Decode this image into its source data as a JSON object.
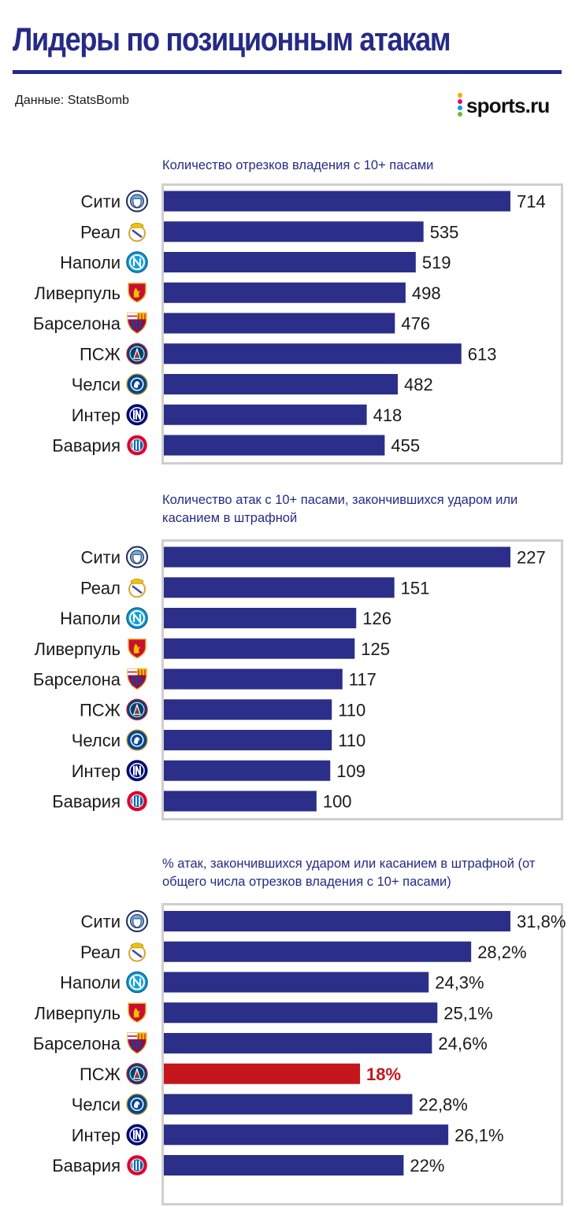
{
  "header": {
    "title": "Лидеры по позиционным атакам",
    "source": "Данные: StatsBomb",
    "logo_text": "sports.ru"
  },
  "colors": {
    "bar": "#2b2f89",
    "highlight": "#c4161c",
    "title": "#262a86"
  },
  "chart_data": [
    {
      "type": "bar",
      "orientation": "horizontal",
      "title": "Количество отрезков владения с 10+ пасами",
      "categories": [
        "Сити",
        "Реал",
        "Наполи",
        "Ливерпуль",
        "Барселона",
        "ПСЖ",
        "Челси",
        "Интер",
        "Бавария"
      ],
      "values": [
        714,
        535,
        519,
        498,
        476,
        613,
        482,
        418,
        455
      ],
      "value_labels": [
        "714",
        "535",
        "519",
        "498",
        "476",
        "613",
        "482",
        "418",
        "455"
      ],
      "xlim": [
        0,
        714
      ],
      "highlight_index": null
    },
    {
      "type": "bar",
      "orientation": "horizontal",
      "title": "Количество атак с 10+ пасами, закончившихся ударом или касанием в штрафной",
      "categories": [
        "Сити",
        "Реал",
        "Наполи",
        "Ливерпуль",
        "Барселона",
        "ПСЖ",
        "Челси",
        "Интер",
        "Бавария"
      ],
      "values": [
        227,
        151,
        126,
        125,
        117,
        110,
        110,
        109,
        100
      ],
      "value_labels": [
        "227",
        "151",
        "126",
        "125",
        "117",
        "110",
        "110",
        "109",
        "100"
      ],
      "xlim": [
        0,
        227
      ],
      "highlight_index": null
    },
    {
      "type": "bar",
      "orientation": "horizontal",
      "title": "% атак, закончившихся ударом или касанием в штрафной (от общего числа отрезков владения с 10+ пасами)",
      "categories": [
        "Сити",
        "Реал",
        "Наполи",
        "Ливерпуль",
        "Барселона",
        "ПСЖ",
        "Челси",
        "Интер",
        "Бавария"
      ],
      "values": [
        31.8,
        28.2,
        24.3,
        25.1,
        24.6,
        18,
        22.8,
        26.1,
        22
      ],
      "value_labels": [
        "31,8%",
        "28,2%",
        "24,3%",
        "25,1%",
        "24,6%",
        "18%",
        "22,8%",
        "26,1%",
        "22%"
      ],
      "xlim": [
        0,
        31.8
      ],
      "highlight_index": 5
    }
  ],
  "team_crests": [
    "man-city-crest",
    "real-madrid-crest",
    "napoli-crest",
    "liverpool-crest",
    "barcelona-crest",
    "psg-crest",
    "chelsea-crest",
    "inter-crest",
    "bayern-crest"
  ]
}
